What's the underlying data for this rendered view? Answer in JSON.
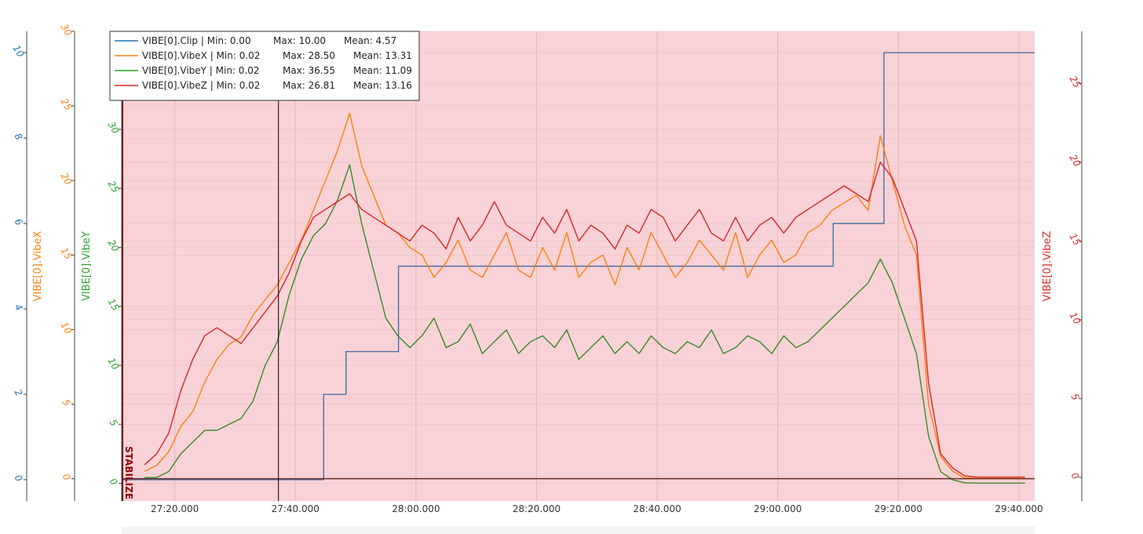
{
  "chart_data": {
    "type": "line",
    "background_color": "#f8d2d6",
    "x_ticks": [
      "27:20.000",
      "27:40.000",
      "28:00.000",
      "28:20.000",
      "28:40.000",
      "29:00.000",
      "29:20.000",
      "29:40.000"
    ],
    "x_range_seconds": [
      1631.2,
      1782.6
    ],
    "mode_label": "STABILIZE",
    "mode_color": "#8b0000",
    "cursor_x_seconds": 1657.2,
    "axes": [
      {
        "id": "clip",
        "label": "",
        "color": "#1f77b4",
        "range": [
          -0.5,
          10.5
        ],
        "ticks": [
          0,
          2,
          4,
          6,
          8,
          10
        ]
      },
      {
        "id": "vibex",
        "label": "VIBE[0].VibeX",
        "color": "#ff7f0e",
        "range": [
          -1.5,
          30.0
        ],
        "ticks": [
          0,
          5,
          10,
          15,
          20,
          25,
          30
        ]
      },
      {
        "id": "vibey",
        "label": "VIBE[0].VibeY",
        "color": "#2ca02c",
        "range": [
          -1.5,
          38.3
        ],
        "ticks": [
          0,
          5,
          10,
          15,
          20,
          25,
          30
        ]
      },
      {
        "id": "vibez",
        "label": "VIBE[0].VibeZ",
        "color": "#d62728",
        "range": [
          -1.5,
          28.3
        ],
        "ticks": [
          0,
          5,
          10,
          15,
          20,
          25
        ]
      }
    ],
    "legend": [
      {
        "name": "VIBE[0].Clip",
        "min": "Min: 0.00",
        "max": "Max: 10.00",
        "mean": "Mean: 4.57",
        "color": "#1f77b4"
      },
      {
        "name": "VIBE[0].VibeX",
        "min": "Min: 0.02",
        "max": "Max: 28.50",
        "mean": "Mean: 13.31",
        "color": "#ff7f0e"
      },
      {
        "name": "VIBE[0].VibeY",
        "min": "Min: 0.02",
        "max": "Max: 36.55",
        "mean": "Mean: 11.09",
        "color": "#2ca02c"
      },
      {
        "name": "VIBE[0].VibeZ",
        "min": "Min: 0.02",
        "max": "Max: 26.81",
        "mean": "Mean: 13.16",
        "color": "#d62728"
      }
    ],
    "series": [
      {
        "name": "VIBE[0].Clip",
        "axis": "clip",
        "color": "#4a6fa5",
        "step": true,
        "x": [
          1631.2,
          1664.7,
          1664.7,
          1668.4,
          1668.4,
          1677.1,
          1677.1,
          1679.2,
          1679.2,
          1749.2,
          1749.2,
          1757.6,
          1757.6,
          1782.6
        ],
        "y": [
          0,
          0,
          2,
          2,
          3,
          3,
          5,
          5,
          5,
          5,
          6,
          6,
          10,
          10
        ]
      },
      {
        "name": "VIBE[0].VibeX",
        "axis": "vibex",
        "color": "#ff7f0e",
        "x": [
          1635,
          1637,
          1639,
          1641,
          1643,
          1645,
          1647,
          1649,
          1651,
          1653,
          1655,
          1657,
          1659,
          1661,
          1663,
          1665,
          1667,
          1669,
          1671,
          1673,
          1675,
          1677,
          1679,
          1681,
          1683,
          1685,
          1687,
          1689,
          1691,
          1693,
          1695,
          1697,
          1699,
          1701,
          1703,
          1705,
          1707,
          1709,
          1711,
          1713,
          1715,
          1717,
          1719,
          1721,
          1723,
          1725,
          1727,
          1729,
          1731,
          1733,
          1735,
          1737,
          1739,
          1741,
          1743,
          1745,
          1747,
          1749,
          1751,
          1753,
          1755,
          1757,
          1759,
          1761,
          1763,
          1765,
          1767,
          1769,
          1771,
          1773,
          1775,
          1777,
          1779,
          1781
        ],
        "y": [
          0.5,
          0.9,
          1.8,
          3.5,
          4.5,
          6.5,
          8.0,
          9.0,
          9.5,
          11.0,
          12.0,
          13.0,
          14.5,
          16.0,
          18.0,
          20.0,
          22.0,
          24.5,
          21.0,
          19.0,
          17.0,
          16.5,
          15.5,
          15.0,
          13.5,
          14.5,
          16.0,
          14.0,
          13.5,
          15.0,
          16.5,
          14.0,
          13.5,
          15.5,
          14.0,
          16.5,
          13.5,
          14.5,
          15.0,
          13.0,
          15.5,
          14.0,
          16.5,
          15.0,
          13.5,
          14.5,
          16.0,
          15.0,
          14.0,
          16.5,
          13.5,
          15.0,
          16.0,
          14.5,
          15.0,
          16.5,
          17.0,
          18.0,
          18.5,
          19.0,
          18.0,
          23.0,
          20.0,
          17.0,
          15.0,
          5.0,
          1.5,
          0.5,
          0.05,
          0.02,
          0.02,
          0.02,
          0.02,
          0.02
        ]
      },
      {
        "name": "VIBE[0].VibeY",
        "axis": "vibey",
        "color": "#3a8a28",
        "x": [
          1635,
          1637,
          1639,
          1641,
          1643,
          1645,
          1647,
          1649,
          1651,
          1653,
          1655,
          1657,
          1659,
          1661,
          1663,
          1665,
          1667,
          1669,
          1671,
          1673,
          1675,
          1677,
          1679,
          1681,
          1683,
          1685,
          1687,
          1689,
          1691,
          1693,
          1695,
          1697,
          1699,
          1701,
          1703,
          1705,
          1707,
          1709,
          1711,
          1713,
          1715,
          1717,
          1719,
          1721,
          1723,
          1725,
          1727,
          1729,
          1731,
          1733,
          1735,
          1737,
          1739,
          1741,
          1743,
          1745,
          1747,
          1749,
          1751,
          1753,
          1755,
          1757,
          1759,
          1761,
          1763,
          1765,
          1767,
          1769,
          1771,
          1773,
          1775,
          1777,
          1779,
          1781
        ],
        "y": [
          0.5,
          0.5,
          1.0,
          2.5,
          3.5,
          4.5,
          4.5,
          5.0,
          5.5,
          7.0,
          10.0,
          12.0,
          16.0,
          19.0,
          21.0,
          22.0,
          24.0,
          27.0,
          22.0,
          18.0,
          14.0,
          12.5,
          11.5,
          12.5,
          14.0,
          11.5,
          12.0,
          13.5,
          11.0,
          12.0,
          13.0,
          11.0,
          12.0,
          12.5,
          11.5,
          13.0,
          10.5,
          11.5,
          12.5,
          11.0,
          12.0,
          11.0,
          12.5,
          11.5,
          11.0,
          12.0,
          11.5,
          13.0,
          11.0,
          11.5,
          12.5,
          12.0,
          11.0,
          12.5,
          11.5,
          12.0,
          13.0,
          14.0,
          15.0,
          16.0,
          17.0,
          19.0,
          17.0,
          14.0,
          11.0,
          4.0,
          1.0,
          0.3,
          0.05,
          0.02,
          0.02,
          0.02,
          0.02,
          0.02
        ]
      },
      {
        "name": "VIBE[0].VibeZ",
        "axis": "vibez",
        "color": "#d62728",
        "x": [
          1635,
          1637,
          1639,
          1641,
          1643,
          1645,
          1647,
          1649,
          1651,
          1653,
          1655,
          1657,
          1659,
          1661,
          1663,
          1665,
          1667,
          1669,
          1671,
          1673,
          1675,
          1677,
          1679,
          1681,
          1683,
          1685,
          1687,
          1689,
          1691,
          1693,
          1695,
          1697,
          1699,
          1701,
          1703,
          1705,
          1707,
          1709,
          1711,
          1713,
          1715,
          1717,
          1719,
          1721,
          1723,
          1725,
          1727,
          1729,
          1731,
          1733,
          1735,
          1737,
          1739,
          1741,
          1743,
          1745,
          1747,
          1749,
          1751,
          1753,
          1755,
          1757,
          1759,
          1761,
          1763,
          1765,
          1767,
          1769,
          1771,
          1773,
          1775,
          1777,
          1779,
          1781
        ],
        "y": [
          0.8,
          1.5,
          2.8,
          5.5,
          7.5,
          9.0,
          9.5,
          9.0,
          8.5,
          9.5,
          10.5,
          11.5,
          13.0,
          15.0,
          16.5,
          17.0,
          17.5,
          18.0,
          17.0,
          16.5,
          16.0,
          15.5,
          15.0,
          16.0,
          15.5,
          14.5,
          16.5,
          15.0,
          16.0,
          17.5,
          16.0,
          15.5,
          15.0,
          16.5,
          15.5,
          17.0,
          15.0,
          16.0,
          15.5,
          14.5,
          16.0,
          15.5,
          17.0,
          16.5,
          15.0,
          16.0,
          17.0,
          15.5,
          15.0,
          16.5,
          15.0,
          16.0,
          16.5,
          15.5,
          16.5,
          17.0,
          17.5,
          18.0,
          18.5,
          18.0,
          17.5,
          20.0,
          19.0,
          17.0,
          15.0,
          6.0,
          1.5,
          0.6,
          0.1,
          0.02,
          0.02,
          0.02,
          0.02,
          0.02
        ]
      }
    ]
  }
}
